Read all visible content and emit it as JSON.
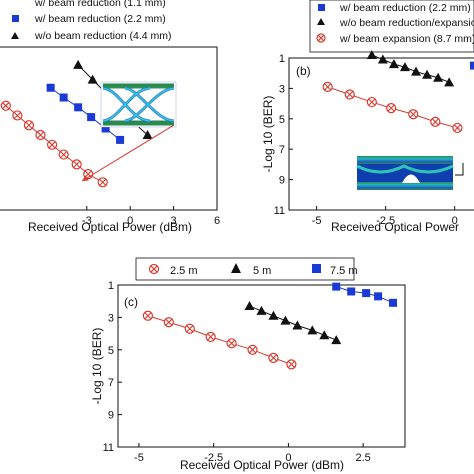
{
  "chart_data": [
    {
      "id": "a",
      "type": "scatter",
      "panel_label": "",
      "xlabel": "Received Optical Power (dBm)",
      "ylabel": "",
      "xlim": [
        -9,
        6
      ],
      "ylim": [
        11,
        1
      ],
      "xticks": [
        -3,
        0,
        3,
        6
      ],
      "yticks": [],
      "legend": {
        "placement": "top",
        "entries": [
          {
            "marker": "square",
            "color": "#1a3ad6",
            "label": "w/   beam reduction (2.2 mm)"
          },
          {
            "marker": "triangle",
            "color": "#111111",
            "label": "w/o beam reduction (4.4 mm)"
          }
        ],
        "partial_top_text": "w/   beam reduction (1.1 mm)"
      },
      "series": [
        {
          "marker": "circle-x",
          "color": "#d93a2e",
          "points": [
            [
              -8.6,
              4.6
            ],
            [
              -7.8,
              5.2
            ],
            [
              -7.0,
              5.8
            ],
            [
              -6.2,
              6.4
            ],
            [
              -5.4,
              7.0
            ],
            [
              -4.6,
              7.6
            ],
            [
              -3.7,
              8.2
            ],
            [
              -2.9,
              8.8
            ],
            [
              -1.9,
              9.3
            ]
          ]
        },
        {
          "marker": "square",
          "color": "#1a3ad6",
          "points": [
            [
              -5.5,
              3.5
            ],
            [
              -4.6,
              4.1
            ],
            [
              -3.6,
              4.7
            ],
            [
              -2.7,
              5.3
            ],
            [
              -1.7,
              6.0
            ],
            [
              -0.7,
              6.7
            ]
          ]
        },
        {
          "marker": "triangle",
          "color": "#111111",
          "points": [
            [
              -3.6,
              2.1
            ],
            [
              -2.6,
              3.0
            ],
            [
              -1.6,
              3.9
            ],
            [
              -0.7,
              4.8
            ],
            [
              0.2,
              5.6
            ],
            [
              1.2,
              6.4
            ]
          ]
        }
      ]
    },
    {
      "id": "b",
      "type": "scatter",
      "panel_label": "(b)",
      "xlabel": "Received Optical Power",
      "ylabel": "-Log 10 (BER)",
      "xlim": [
        -6,
        0.7
      ],
      "ylim": [
        11,
        1
      ],
      "xticks": [
        -5,
        -2.5,
        0
      ],
      "yticks": [
        1,
        3,
        5,
        7,
        9,
        11
      ],
      "legend": {
        "placement": "top",
        "entries": [
          {
            "marker": "square",
            "color": "#1a3ad6",
            "label": "w/   beam reduction (2.2 mm)"
          },
          {
            "marker": "triangle",
            "color": "#111111",
            "label": "w/o beam reduction/expansion"
          },
          {
            "marker": "circle-x",
            "color": "#d93a2e",
            "label": "w/   beam expansion (8.7 mm)"
          }
        ]
      },
      "series": [
        {
          "marker": "circle-x",
          "color": "#d93a2e",
          "points": [
            [
              -4.6,
              2.9
            ],
            [
              -3.8,
              3.4
            ],
            [
              -3.0,
              3.9
            ],
            [
              -2.3,
              4.3
            ],
            [
              -1.5,
              4.7
            ],
            [
              -0.7,
              5.2
            ],
            [
              0.1,
              5.6
            ]
          ]
        },
        {
          "marker": "triangle",
          "color": "#111111",
          "points": [
            [
              -3.0,
              0.8
            ],
            [
              -2.6,
              1.1
            ],
            [
              -2.2,
              1.4
            ],
            [
              -1.8,
              1.6
            ],
            [
              -1.4,
              1.9
            ],
            [
              -1.0,
              2.1
            ],
            [
              -0.6,
              2.3
            ],
            [
              -0.2,
              2.6
            ]
          ]
        },
        {
          "marker": "square",
          "color": "#1a3ad6",
          "points": [
            [
              0.7,
              1.5
            ]
          ]
        }
      ]
    },
    {
      "id": "c",
      "type": "scatter",
      "panel_label": "(c)",
      "xlabel": "Received Optical Power (dBm)",
      "ylabel": "-Log 10 (BER)",
      "xlim": [
        -5.7,
        3.9
      ],
      "ylim": [
        11,
        1
      ],
      "xticks": [
        -5,
        -2.5,
        0,
        2.5
      ],
      "yticks": [
        1,
        3,
        5,
        7,
        9,
        11
      ],
      "legend": {
        "placement": "top",
        "entries": [
          {
            "marker": "circle-x",
            "color": "#d93a2e",
            "label": "2.5 m"
          },
          {
            "marker": "triangle",
            "color": "#111111",
            "label": "5 m"
          },
          {
            "marker": "square",
            "color": "#1a3ad6",
            "label": "7.5 m"
          }
        ]
      },
      "series": [
        {
          "name": "2.5 m",
          "marker": "circle-x",
          "color": "#d93a2e",
          "points": [
            [
              -4.7,
              2.9
            ],
            [
              -4.0,
              3.3
            ],
            [
              -3.3,
              3.7
            ],
            [
              -2.6,
              4.2
            ],
            [
              -1.9,
              4.6
            ],
            [
              -1.2,
              5.0
            ],
            [
              -0.5,
              5.5
            ],
            [
              0.1,
              5.9
            ]
          ]
        },
        {
          "name": "5 m",
          "marker": "triangle",
          "color": "#111111",
          "points": [
            [
              -1.3,
              2.3
            ],
            [
              -0.9,
              2.6
            ],
            [
              -0.5,
              2.9
            ],
            [
              -0.1,
              3.2
            ],
            [
              0.3,
              3.5
            ],
            [
              0.8,
              3.8
            ],
            [
              1.2,
              4.1
            ],
            [
              1.6,
              4.4
            ]
          ]
        },
        {
          "name": "7.5 m",
          "marker": "square",
          "color": "#1a3ad6",
          "points": [
            [
              1.6,
              1.1
            ],
            [
              2.1,
              1.4
            ],
            [
              2.6,
              1.5
            ],
            [
              3.0,
              1.7
            ],
            [
              3.5,
              2.1
            ]
          ]
        }
      ]
    }
  ],
  "colors": {
    "red": "#d93a2e",
    "blue": "#1a3ad6",
    "black": "#111111"
  }
}
